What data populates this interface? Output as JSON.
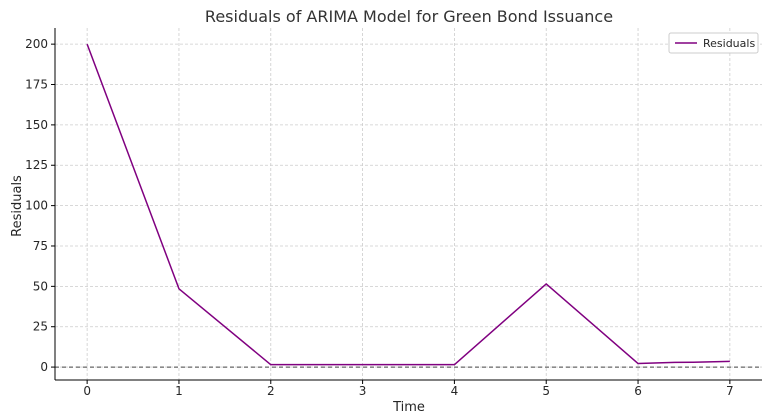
{
  "chart_data": {
    "type": "line",
    "title": "Residuals of ARIMA Model for Green Bond Issuance",
    "xlabel": "Time",
    "ylabel": "Residuals",
    "xlim": [
      -0.35,
      7.35
    ],
    "ylim": [
      -8,
      210
    ],
    "xticks": [
      0,
      1,
      2,
      3,
      4,
      5,
      6,
      7
    ],
    "yticks": [
      0,
      25,
      50,
      75,
      100,
      125,
      150,
      175,
      200
    ],
    "grid": true,
    "legend_position": "top-right",
    "reference_line": {
      "y": 0,
      "style": "dashed",
      "color": "#444444"
    },
    "series": [
      {
        "name": "Residuals",
        "color": "#800080",
        "x": [
          0,
          1,
          2,
          3,
          4,
          5,
          6,
          6.4,
          6.6,
          7
        ],
        "y": [
          200,
          48.5,
          1.5,
          1.5,
          1.5,
          51.5,
          2.2,
          2.9,
          3.0,
          3.5
        ]
      }
    ]
  }
}
